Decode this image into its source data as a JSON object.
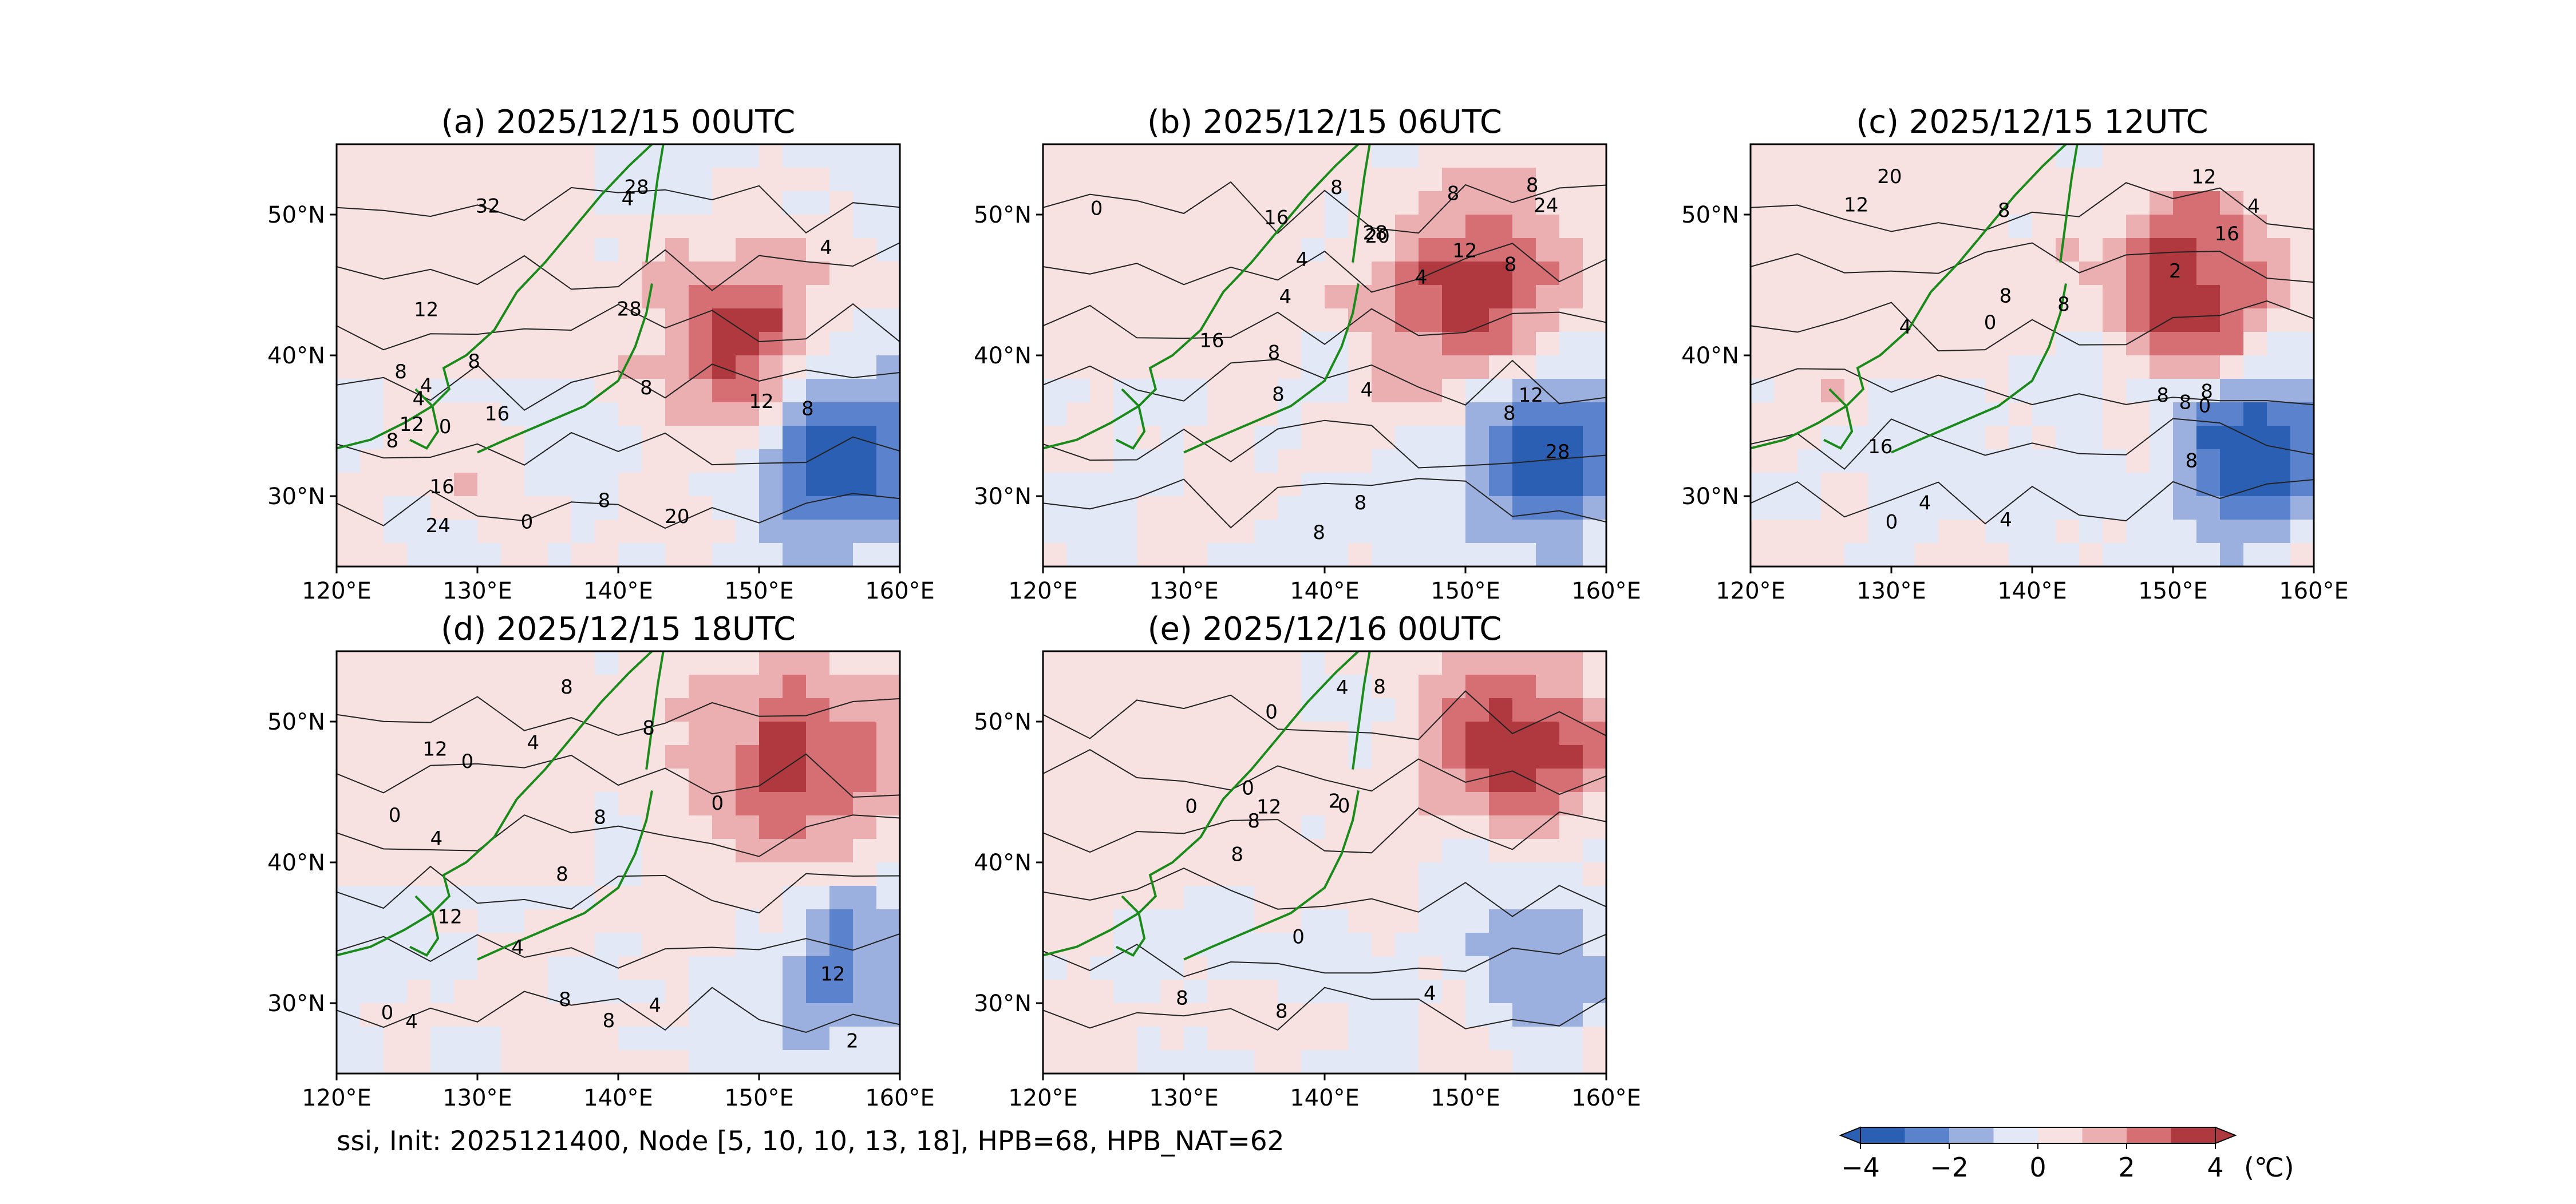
{
  "figure": {
    "footer": "ssi, Init: 2025121400, Node [5, 10, 10, 13, 18], HPB=68, HPB_NAT=62",
    "colorbar": {
      "ticks": [
        "−4",
        "−2",
        "0",
        "2",
        "4"
      ],
      "unit": "(℃)",
      "colors": [
        "#2b5fb4",
        "#5b82cc",
        "#9cb0e0",
        "#e3e8f6",
        "#f7e1e1",
        "#ebaeb1",
        "#d56f73",
        "#b0393f"
      ]
    },
    "x_ticks": [
      "120°E",
      "130°E",
      "140°E",
      "150°E",
      "160°E"
    ],
    "y_ticks": [
      "30°N",
      "40°N",
      "50°N"
    ]
  },
  "chart_data": [
    {
      "type": "heatmap",
      "title": "(a) 2025/12/15 00UTC",
      "xlim": [
        120,
        160
      ],
      "ylim": [
        25,
        55
      ],
      "fill_levels": [
        -4,
        -3,
        -2,
        -1,
        0,
        1,
        2,
        3,
        4
      ],
      "contour_labels": [
        "0",
        "4",
        "4",
        "8",
        "8",
        "8",
        "8",
        "8",
        "8",
        "12",
        "12",
        "12",
        "16",
        "16",
        "20",
        "24",
        "28",
        "28",
        "32",
        "4",
        "4",
        "0"
      ]
    },
    {
      "type": "heatmap",
      "title": "(b) 2025/12/15 06UTC",
      "xlim": [
        120,
        160
      ],
      "ylim": [
        25,
        55
      ],
      "fill_levels": [
        -4,
        -3,
        -2,
        -1,
        0,
        1,
        2,
        3,
        4
      ],
      "contour_labels": [
        "0",
        "4",
        "4",
        "4",
        "8",
        "8",
        "8",
        "8",
        "8",
        "8",
        "8",
        "8",
        "12",
        "12",
        "16",
        "16",
        "20",
        "24",
        "28",
        "28",
        "4",
        "8"
      ]
    },
    {
      "type": "heatmap",
      "title": "(c) 2025/12/15 12UTC",
      "xlim": [
        120,
        160
      ],
      "ylim": [
        25,
        55
      ],
      "fill_levels": [
        -4,
        -3,
        -2,
        -1,
        0,
        1,
        2,
        3,
        4
      ],
      "contour_labels": [
        "0",
        "0",
        "0",
        "4",
        "4",
        "4",
        "8",
        "8",
        "8",
        "8",
        "8",
        "8",
        "8",
        "12",
        "12",
        "16",
        "16",
        "20",
        "2",
        "4"
      ]
    },
    {
      "type": "heatmap",
      "title": "(d) 2025/12/15 18UTC",
      "xlim": [
        120,
        160
      ],
      "ylim": [
        25,
        55
      ],
      "fill_levels": [
        -4,
        -3,
        -2,
        -1,
        0,
        1,
        2,
        3,
        4
      ],
      "contour_labels": [
        "0",
        "0",
        "0",
        "0",
        "4",
        "4",
        "4",
        "4",
        "8",
        "8",
        "8",
        "8",
        "8",
        "8",
        "12",
        "12",
        "12",
        "2",
        "4"
      ]
    },
    {
      "type": "heatmap",
      "title": "(e) 2025/12/16 00UTC",
      "xlim": [
        120,
        160
      ],
      "ylim": [
        25,
        55
      ],
      "fill_levels": [
        -4,
        -3,
        -2,
        -1,
        0,
        1,
        2,
        3,
        4
      ],
      "contour_labels": [
        "0",
        "0",
        "0",
        "0",
        "0",
        "4",
        "4",
        "8",
        "8",
        "8",
        "8",
        "8",
        "12",
        "2"
      ]
    }
  ]
}
